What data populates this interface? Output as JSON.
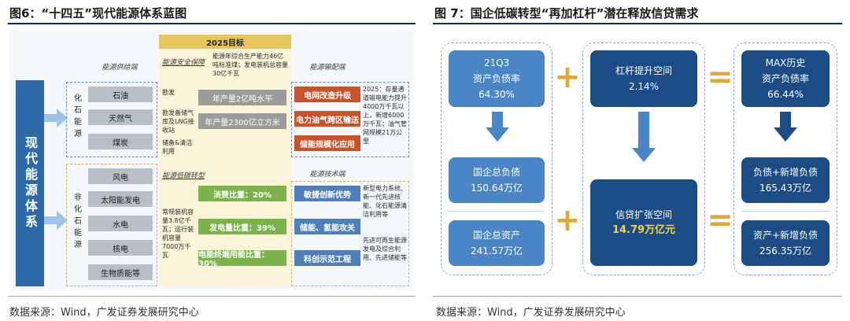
{
  "left": {
    "title": "图6：“十四五”现代能源体系蓝图",
    "source": "数据来源：Wind，广发证券发展研究中心",
    "main_label": "现代能源体系",
    "fossil_label": "化石能源",
    "nonfossil_label": "非化石能源",
    "supply_header": "能源供给端",
    "fossil_items": [
      "石油",
      "天然气",
      "煤炭"
    ],
    "nonfossil_items": [
      "风电",
      "太阳能发电",
      "水电",
      "核电",
      "生物质能等"
    ],
    "goal_header": "2025目标",
    "security_header": "能源安全保障",
    "security_note": "能源年综合生产能力46亿吨标准煤；发电装机总容量30亿千瓦",
    "security_side": [
      "勘发",
      "勘发备储气库及LNG接收站",
      "储备&清洁利用"
    ],
    "oil_bar": "年产量2亿吨水平",
    "gas_bar": "年产量2300亿立方米",
    "lowcarbon_header": "能源低碳转型",
    "lowcarbon_side": "常规装机容量3.8亿千瓦；运行装机容量7000万千瓦",
    "green_bars": [
      "消费比重：20%",
      "发电量比重：39%",
      "电能终端用能比重：30%"
    ],
    "transmit_header": "能源输配端",
    "transmit_items": [
      "电网改造升级",
      "电力油气跨区输送",
      "储能规模化应用"
    ],
    "transmit_note": "2025：存量通道输电能力提升4000万千瓦以上，新增6000万千瓦；油气管网规模21万公里",
    "tech_header": "能源技术端",
    "tech_items": [
      "敏捷创新优势",
      "储能、氢能攻关",
      "科创示范工程"
    ],
    "tech_note1": "新型电力系统、新一代先进核能、化石能源清洁利用等",
    "tech_note2": "先进可再生能源发电及综合利用、先进储能等"
  },
  "right": {
    "title": "图 7：国企低碳转型“再加杠杆”潜在释放信贷需求",
    "source": "数据来源：Wind，广发证券发展研究中心",
    "box1": [
      "21Q3",
      "资产负债率",
      "64.30%"
    ],
    "box2": [
      "杠杆提升空间",
      "2.14%"
    ],
    "box3": [
      "MAX历史",
      "资产负债率",
      "66.44%"
    ],
    "box4": [
      "国企总负债",
      "150.64万亿"
    ],
    "box5": [
      "信贷扩张空间",
      "14.79万亿元"
    ],
    "box6": [
      "负债+新增负债",
      "165.43万亿"
    ],
    "box7": [
      "国企总资产",
      "241.57万亿"
    ],
    "box8": [
      "资产+新增负债",
      "256.35万亿"
    ],
    "plus": "+",
    "equals": "=",
    "colors": {
      "blue": "#4a86c5",
      "dark": "#1c4c86",
      "gold": "#e0a73a",
      "highlight": "#f5d34a"
    }
  }
}
